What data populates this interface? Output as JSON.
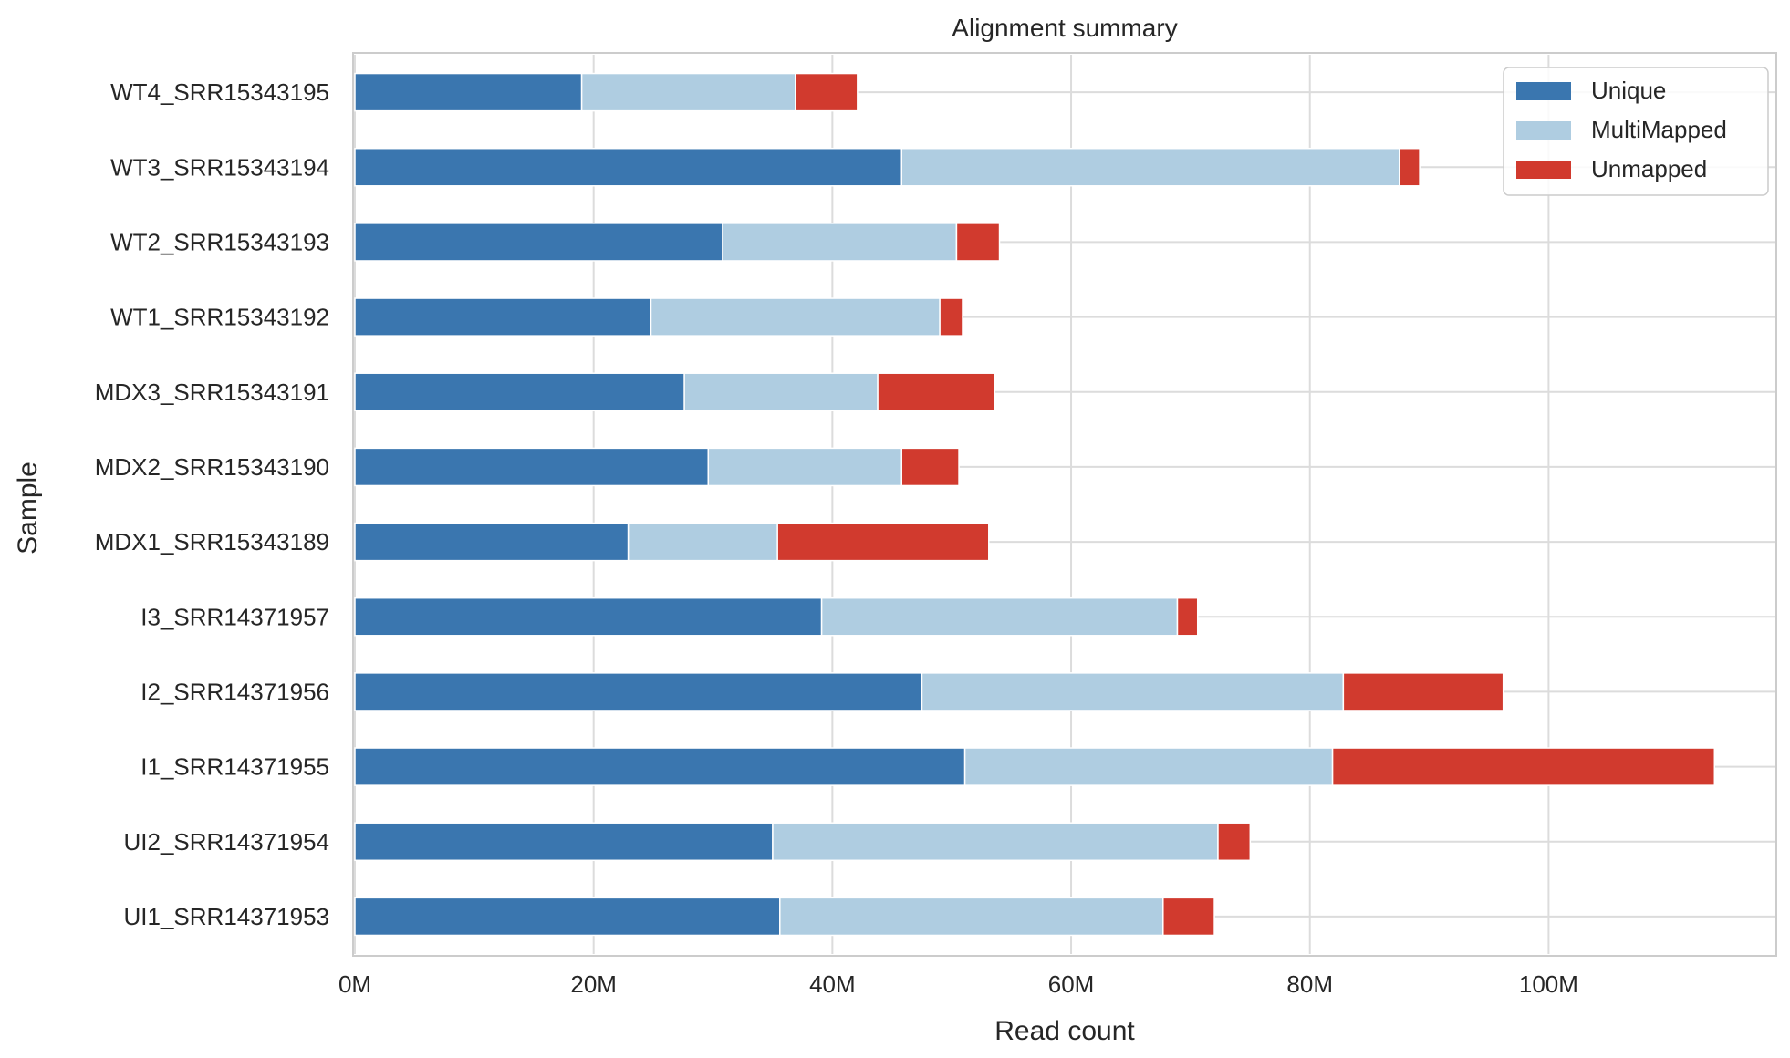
{
  "chart_data": {
    "type": "bar",
    "orientation": "horizontal",
    "stacked": true,
    "title": "Alignment summary",
    "xlabel": "Read count",
    "ylabel": "Sample",
    "xlim": [
      0,
      119000000
    ],
    "xticks": [
      0,
      20000000,
      40000000,
      60000000,
      80000000,
      100000000
    ],
    "xtick_labels": [
      "0M",
      "20M",
      "40M",
      "60M",
      "80M",
      "100M"
    ],
    "grid": true,
    "legend_position": "top-right",
    "categories": [
      "WT4_SRR15343195",
      "WT3_SRR15343194",
      "WT2_SRR15343193",
      "WT1_SRR15343192",
      "MDX3_SRR15343191",
      "MDX2_SRR15343190",
      "MDX1_SRR15343189",
      "I3_SRR14371957",
      "I2_SRR14371956",
      "I1_SRR14371955",
      "UI2_SRR14371954",
      "UI1_SRR14371953"
    ],
    "series": [
      {
        "name": "Unique",
        "color": "#3a76af",
        "values": [
          19000000,
          45800000,
          30800000,
          24800000,
          27600000,
          29600000,
          22900000,
          39100000,
          47500000,
          51100000,
          35000000,
          35600000
        ]
      },
      {
        "name": "MultiMapped",
        "color": "#afcde1",
        "values": [
          17900000,
          41700000,
          19600000,
          24200000,
          16200000,
          16200000,
          12500000,
          29800000,
          35300000,
          30800000,
          37300000,
          32100000
        ]
      },
      {
        "name": "Unmapped",
        "color": "#d13a2e",
        "values": [
          5200000,
          1700000,
          3600000,
          1900000,
          9800000,
          4800000,
          17700000,
          1700000,
          13400000,
          32000000,
          2700000,
          4300000
        ]
      }
    ]
  }
}
